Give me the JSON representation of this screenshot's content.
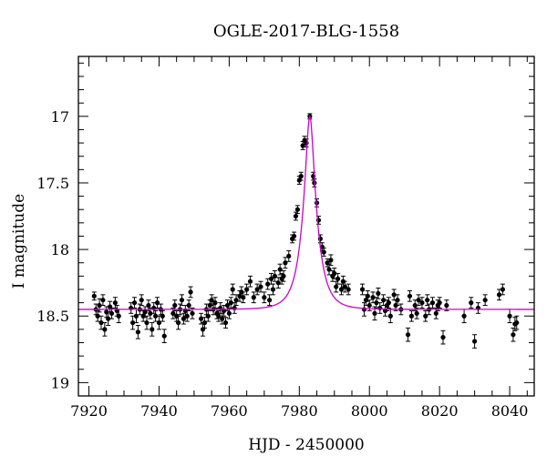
{
  "chart_data": {
    "type": "scatter",
    "title": "OGLE-2017-BLG-1558",
    "xlabel": "HJD - 2450000",
    "ylabel": "I magnitude",
    "xlim": [
      7917,
      8047
    ],
    "ylim": [
      19.1,
      16.55
    ],
    "y_inverted": true,
    "xticks": [
      7920,
      7940,
      7960,
      7980,
      8000,
      8020,
      8040
    ],
    "yticks": [
      17,
      17.5,
      18,
      18.5,
      19
    ],
    "grid": false,
    "colors": {
      "points": "#000000",
      "model": "#cc00cc"
    },
    "model": {
      "baseline": 18.45,
      "peak_mag": 17.0,
      "t0": 7983.0,
      "tE": 4.0
    },
    "series": [
      {
        "points": [
          [
            7921.5,
            18.35,
            0.03
          ],
          [
            7922,
            18.45,
            0.04
          ],
          [
            7922.5,
            18.5,
            0.04
          ],
          [
            7923,
            18.42,
            0.05
          ],
          [
            7923.5,
            18.55,
            0.05
          ],
          [
            7924,
            18.38,
            0.04
          ],
          [
            7924.5,
            18.6,
            0.05
          ],
          [
            7925,
            18.47,
            0.04
          ],
          [
            7925.5,
            18.52,
            0.05
          ],
          [
            7926,
            18.43,
            0.04
          ],
          [
            7926.5,
            18.48,
            0.04
          ],
          [
            7927.5,
            18.4,
            0.04
          ],
          [
            7928,
            18.46,
            0.04
          ],
          [
            7928.5,
            18.5,
            0.05
          ],
          [
            7932,
            18.44,
            0.04
          ],
          [
            7932.5,
            18.55,
            0.05
          ],
          [
            7933,
            18.4,
            0.04
          ],
          [
            7933.5,
            18.5,
            0.05
          ],
          [
            7934,
            18.62,
            0.05
          ],
          [
            7934.5,
            18.45,
            0.04
          ],
          [
            7935,
            18.38,
            0.04
          ],
          [
            7935.5,
            18.5,
            0.04
          ],
          [
            7936,
            18.47,
            0.04
          ],
          [
            7936.5,
            18.55,
            0.05
          ],
          [
            7937,
            18.42,
            0.04
          ],
          [
            7937.5,
            18.48,
            0.04
          ],
          [
            7938,
            18.6,
            0.05
          ],
          [
            7938.5,
            18.44,
            0.04
          ],
          [
            7939,
            18.5,
            0.04
          ],
          [
            7939.5,
            18.4,
            0.04
          ],
          [
            7940,
            18.55,
            0.05
          ],
          [
            7940.5,
            18.45,
            0.04
          ],
          [
            7941,
            18.5,
            0.04
          ],
          [
            7941.5,
            18.65,
            0.05
          ],
          [
            7944,
            18.48,
            0.04
          ],
          [
            7944.5,
            18.42,
            0.04
          ],
          [
            7945,
            18.5,
            0.04
          ],
          [
            7945.5,
            18.55,
            0.05
          ],
          [
            7946,
            18.45,
            0.04
          ],
          [
            7946.5,
            18.38,
            0.04
          ],
          [
            7947,
            18.52,
            0.04
          ],
          [
            7947.5,
            18.46,
            0.04
          ],
          [
            7948,
            18.5,
            0.04
          ],
          [
            7948.5,
            18.42,
            0.04
          ],
          [
            7949,
            18.32,
            0.04
          ],
          [
            7949.5,
            18.48,
            0.04
          ],
          [
            7952,
            18.52,
            0.04
          ],
          [
            7952.5,
            18.6,
            0.05
          ],
          [
            7953,
            18.55,
            0.04
          ],
          [
            7953.5,
            18.45,
            0.04
          ],
          [
            7954,
            18.5,
            0.04
          ],
          [
            7954.5,
            18.42,
            0.04
          ],
          [
            7955,
            18.38,
            0.04
          ],
          [
            7955.5,
            18.45,
            0.04
          ],
          [
            7956,
            18.4,
            0.04
          ],
          [
            7956.5,
            18.48,
            0.04
          ],
          [
            7957,
            18.5,
            0.04
          ],
          [
            7957.5,
            18.44,
            0.04
          ],
          [
            7958,
            18.52,
            0.04
          ],
          [
            7958.5,
            18.46,
            0.04
          ],
          [
            7959,
            18.55,
            0.04
          ],
          [
            7959.5,
            18.42,
            0.04
          ],
          [
            7960,
            18.48,
            0.04
          ],
          [
            7960.5,
            18.4,
            0.04
          ],
          [
            7961,
            18.3,
            0.04
          ],
          [
            7961.5,
            18.44,
            0.04
          ],
          [
            7962,
            18.38,
            0.04
          ],
          [
            7963,
            18.35,
            0.04
          ],
          [
            7963.5,
            18.32,
            0.04
          ],
          [
            7964,
            18.36,
            0.04
          ],
          [
            7965,
            18.3,
            0.04
          ],
          [
            7966,
            18.24,
            0.04
          ],
          [
            7967,
            18.36,
            0.04
          ],
          [
            7968,
            18.3,
            0.04
          ],
          [
            7969,
            18.28,
            0.04
          ],
          [
            7970,
            18.36,
            0.04
          ],
          [
            7971,
            18.26,
            0.04
          ],
          [
            7971.5,
            18.38,
            0.04
          ],
          [
            7972,
            18.22,
            0.04
          ],
          [
            7972.5,
            18.3,
            0.04
          ],
          [
            7973,
            18.2,
            0.04
          ],
          [
            7974,
            18.25,
            0.04
          ],
          [
            7974.5,
            18.15,
            0.04
          ],
          [
            7975,
            18.22,
            0.04
          ],
          [
            7975.5,
            18.2,
            0.04
          ],
          [
            7976,
            18.1,
            0.04
          ],
          [
            7977,
            18.05,
            0.04
          ],
          [
            7978,
            17.92,
            0.03
          ],
          [
            7978.5,
            17.9,
            0.03
          ],
          [
            7979,
            17.75,
            0.03
          ],
          [
            7979.5,
            17.7,
            0.03
          ],
          [
            7980,
            17.48,
            0.03
          ],
          [
            7980.5,
            17.45,
            0.03
          ],
          [
            7981,
            17.22,
            0.03
          ],
          [
            7981.5,
            17.18,
            0.03
          ],
          [
            7982,
            17.2,
            0.03
          ],
          [
            7983,
            17.0,
            0.02
          ],
          [
            7984,
            17.45,
            0.03
          ],
          [
            7984.3,
            17.5,
            0.03
          ],
          [
            7985,
            17.65,
            0.03
          ],
          [
            7985.5,
            17.78,
            0.03
          ],
          [
            7986,
            17.92,
            0.03
          ],
          [
            7986.5,
            17.98,
            0.03
          ],
          [
            7987,
            18.02,
            0.03
          ],
          [
            7988,
            18.1,
            0.03
          ],
          [
            7988.5,
            18.15,
            0.04
          ],
          [
            7989,
            18.08,
            0.04
          ],
          [
            7989.5,
            18.2,
            0.04
          ],
          [
            7990,
            18.18,
            0.04
          ],
          [
            7990.5,
            18.28,
            0.04
          ],
          [
            7991,
            18.22,
            0.04
          ],
          [
            7992,
            18.3,
            0.04
          ],
          [
            7992.5,
            18.24,
            0.04
          ],
          [
            7993,
            18.28,
            0.04
          ],
          [
            7994,
            18.3,
            0.04
          ],
          [
            7998,
            18.3,
            0.04
          ],
          [
            7998.5,
            18.45,
            0.05
          ],
          [
            7999,
            18.38,
            0.04
          ],
          [
            7999.5,
            18.35,
            0.04
          ],
          [
            8000,
            18.42,
            0.04
          ],
          [
            8001,
            18.36,
            0.04
          ],
          [
            8001.5,
            18.48,
            0.05
          ],
          [
            8002,
            18.4,
            0.04
          ],
          [
            8002.5,
            18.33,
            0.04
          ],
          [
            8003,
            18.44,
            0.04
          ],
          [
            8004,
            18.38,
            0.04
          ],
          [
            8004.5,
            18.46,
            0.04
          ],
          [
            8005,
            18.42,
            0.04
          ],
          [
            8005.5,
            18.4,
            0.04
          ],
          [
            8006,
            18.5,
            0.05
          ],
          [
            8007,
            18.34,
            0.04
          ],
          [
            8007.5,
            18.42,
            0.04
          ],
          [
            8008,
            18.38,
            0.04
          ],
          [
            8009,
            18.45,
            0.04
          ],
          [
            8011,
            18.64,
            0.05
          ],
          [
            8011.5,
            18.35,
            0.04
          ],
          [
            8012,
            18.5,
            0.04
          ],
          [
            8013,
            18.42,
            0.04
          ],
          [
            8013.5,
            18.48,
            0.04
          ],
          [
            8014,
            18.38,
            0.04
          ],
          [
            8015,
            18.4,
            0.04
          ],
          [
            8016,
            18.5,
            0.04
          ],
          [
            8016.5,
            18.38,
            0.04
          ],
          [
            8017,
            18.45,
            0.04
          ],
          [
            8018,
            18.4,
            0.04
          ],
          [
            8019,
            18.48,
            0.04
          ],
          [
            8019.5,
            18.42,
            0.04
          ],
          [
            8020,
            18.4,
            0.04
          ],
          [
            8021,
            18.66,
            0.05
          ],
          [
            8022,
            18.42,
            0.04
          ],
          [
            8027,
            18.5,
            0.05
          ],
          [
            8029,
            18.4,
            0.04
          ],
          [
            8030,
            18.69,
            0.05
          ],
          [
            8031,
            18.44,
            0.04
          ],
          [
            8033,
            18.38,
            0.04
          ],
          [
            8037,
            18.34,
            0.04
          ],
          [
            8038,
            18.3,
            0.04
          ],
          [
            8040,
            18.5,
            0.05
          ],
          [
            8041,
            18.64,
            0.05
          ],
          [
            8041.5,
            18.56,
            0.05
          ],
          [
            8042,
            18.55,
            0.05
          ]
        ]
      }
    ]
  }
}
